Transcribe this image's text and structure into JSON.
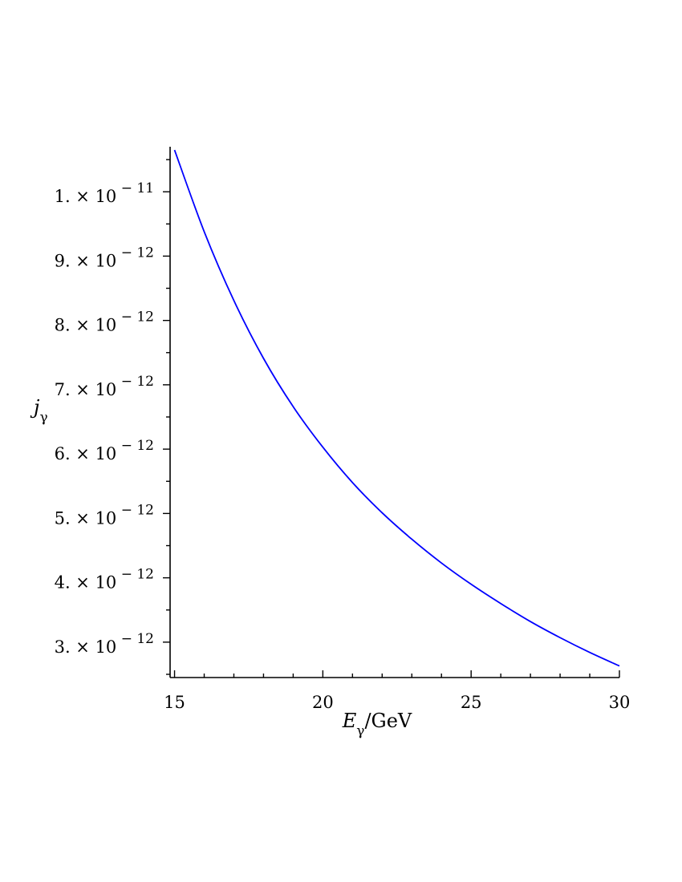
{
  "chart_data": {
    "type": "line",
    "xlabel": {
      "symbol": "E",
      "subscript": "γ",
      "suffix": "/GeV"
    },
    "ylabel": {
      "symbol": "j",
      "subscript": "γ"
    },
    "xlim": [
      14.85,
      30
    ],
    "ylim": [
      2.45e-12,
      1.07e-11
    ],
    "x_ticks": [
      {
        "value": 15,
        "label": "15"
      },
      {
        "value": 20,
        "label": "20"
      },
      {
        "value": 25,
        "label": "25"
      },
      {
        "value": 30,
        "label": "30"
      }
    ],
    "y_ticks": [
      {
        "value": 3e-12,
        "mantissa": "3.",
        "times": "×",
        "base": "10",
        "exponent": "− 12"
      },
      {
        "value": 4e-12,
        "mantissa": "4.",
        "times": "×",
        "base": "10",
        "exponent": "− 12"
      },
      {
        "value": 5e-12,
        "mantissa": "5.",
        "times": "×",
        "base": "10",
        "exponent": "− 12"
      },
      {
        "value": 6e-12,
        "mantissa": "6.",
        "times": "×",
        "base": "10",
        "exponent": "− 12"
      },
      {
        "value": 7e-12,
        "mantissa": "7.",
        "times": "×",
        "base": "10",
        "exponent": "− 12"
      },
      {
        "value": 8e-12,
        "mantissa": "8.",
        "times": "×",
        "base": "10",
        "exponent": "− 12"
      },
      {
        "value": 9e-12,
        "mantissa": "9.",
        "times": "×",
        "base": "10",
        "exponent": "− 12"
      },
      {
        "value": 1e-11,
        "mantissa": "1.",
        "times": "×",
        "base": "10",
        "exponent": "− 11"
      }
    ],
    "series": [
      {
        "color": "#0000ff",
        "x": [
          15,
          16,
          17,
          18,
          19,
          20,
          21,
          22,
          23,
          24,
          25,
          26,
          27,
          28,
          29,
          30
        ],
        "y": [
          1.065e-11,
          9.38e-12,
          8.31e-12,
          7.41e-12,
          6.66e-12,
          6.03e-12,
          5.48e-12,
          5.01e-12,
          4.6e-12,
          4.23e-12,
          3.9e-12,
          3.6e-12,
          3.32e-12,
          3.07e-12,
          2.84e-12,
          2.63e-12
        ]
      }
    ],
    "grid": false,
    "legend": "none"
  }
}
